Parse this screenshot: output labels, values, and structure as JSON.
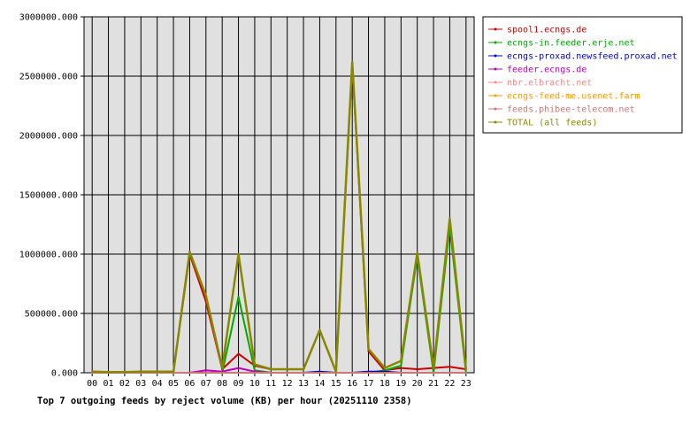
{
  "chart_data": {
    "type": "line",
    "title": "Top 7 outgoing feeds by reject volume (KB) per hour (20251110 2358)",
    "xlabel": "",
    "ylabel": "",
    "ylim": [
      0,
      3000000
    ],
    "y_ticks": [
      0,
      500000,
      1000000,
      1500000,
      2000000,
      2500000,
      3000000
    ],
    "y_tick_labels": [
      "0.000",
      "500000.000",
      "1000000.000",
      "1500000.000",
      "2000000.000",
      "2500000.000",
      "3000000.000"
    ],
    "grid": true,
    "legend_position": "right",
    "x": [
      "00",
      "01",
      "02",
      "03",
      "04",
      "05",
      "06",
      "07",
      "08",
      "09",
      "10",
      "11",
      "12",
      "13",
      "14",
      "15",
      "16",
      "17",
      "18",
      "19",
      "20",
      "21",
      "22",
      "23"
    ],
    "series": [
      {
        "name": "spool1.ecngs.de",
        "color": "#cc0000",
        "values": [
          10000,
          5000,
          5000,
          10000,
          10000,
          10000,
          1000000,
          600000,
          30000,
          160000,
          60000,
          30000,
          30000,
          30000,
          360000,
          10000,
          2600000,
          180000,
          20000,
          40000,
          30000,
          40000,
          50000,
          30000
        ]
      },
      {
        "name": "ecngs-in.feeder.erje.net",
        "color": "#00aa00",
        "values": [
          0,
          0,
          0,
          0,
          0,
          0,
          0,
          0,
          0,
          640000,
          20000,
          0,
          0,
          0,
          0,
          0,
          0,
          0,
          20000,
          60000,
          980000,
          0,
          1230000,
          0
        ]
      },
      {
        "name": "ecngs-proxad.newsfeed.proxad.net",
        "color": "#0000cc",
        "values": [
          0,
          0,
          0,
          0,
          0,
          0,
          0,
          0,
          0,
          0,
          0,
          0,
          0,
          0,
          10000,
          0,
          0,
          10000,
          10000,
          0,
          0,
          0,
          0,
          0
        ]
      },
      {
        "name": "feeder.ecngs.de",
        "color": "#bb00bb",
        "values": [
          0,
          0,
          0,
          0,
          0,
          0,
          0,
          20000,
          10000,
          40000,
          10000,
          0,
          0,
          0,
          0,
          0,
          0,
          0,
          0,
          0,
          0,
          0,
          0,
          0
        ]
      },
      {
        "name": "nbr.elbracht.net",
        "color": "#ff8888",
        "values": [
          0,
          0,
          0,
          0,
          0,
          0,
          0,
          0,
          0,
          0,
          0,
          0,
          0,
          0,
          0,
          0,
          0,
          0,
          0,
          0,
          0,
          0,
          0,
          0
        ]
      },
      {
        "name": "ecngs-feed-me.usenet.farm",
        "color": "#ff9900",
        "values": [
          0,
          0,
          0,
          0,
          0,
          0,
          0,
          0,
          0,
          0,
          0,
          0,
          0,
          0,
          0,
          0,
          0,
          0,
          0,
          0,
          0,
          0,
          0,
          0
        ]
      },
      {
        "name": "feeds.phibee-telecom.net",
        "color": "#cc7777",
        "values": [
          0,
          0,
          0,
          0,
          0,
          0,
          0,
          0,
          0,
          0,
          0,
          0,
          0,
          0,
          0,
          0,
          0,
          0,
          0,
          0,
          0,
          0,
          0,
          0
        ]
      },
      {
        "name": "TOTAL (all feeds)",
        "color": "#888800",
        "values": [
          10000,
          5000,
          5000,
          10000,
          10000,
          10000,
          1020000,
          650000,
          40000,
          1000000,
          70000,
          30000,
          30000,
          30000,
          360000,
          10000,
          2620000,
          200000,
          40000,
          100000,
          1010000,
          40000,
          1300000,
          30000
        ]
      }
    ]
  }
}
